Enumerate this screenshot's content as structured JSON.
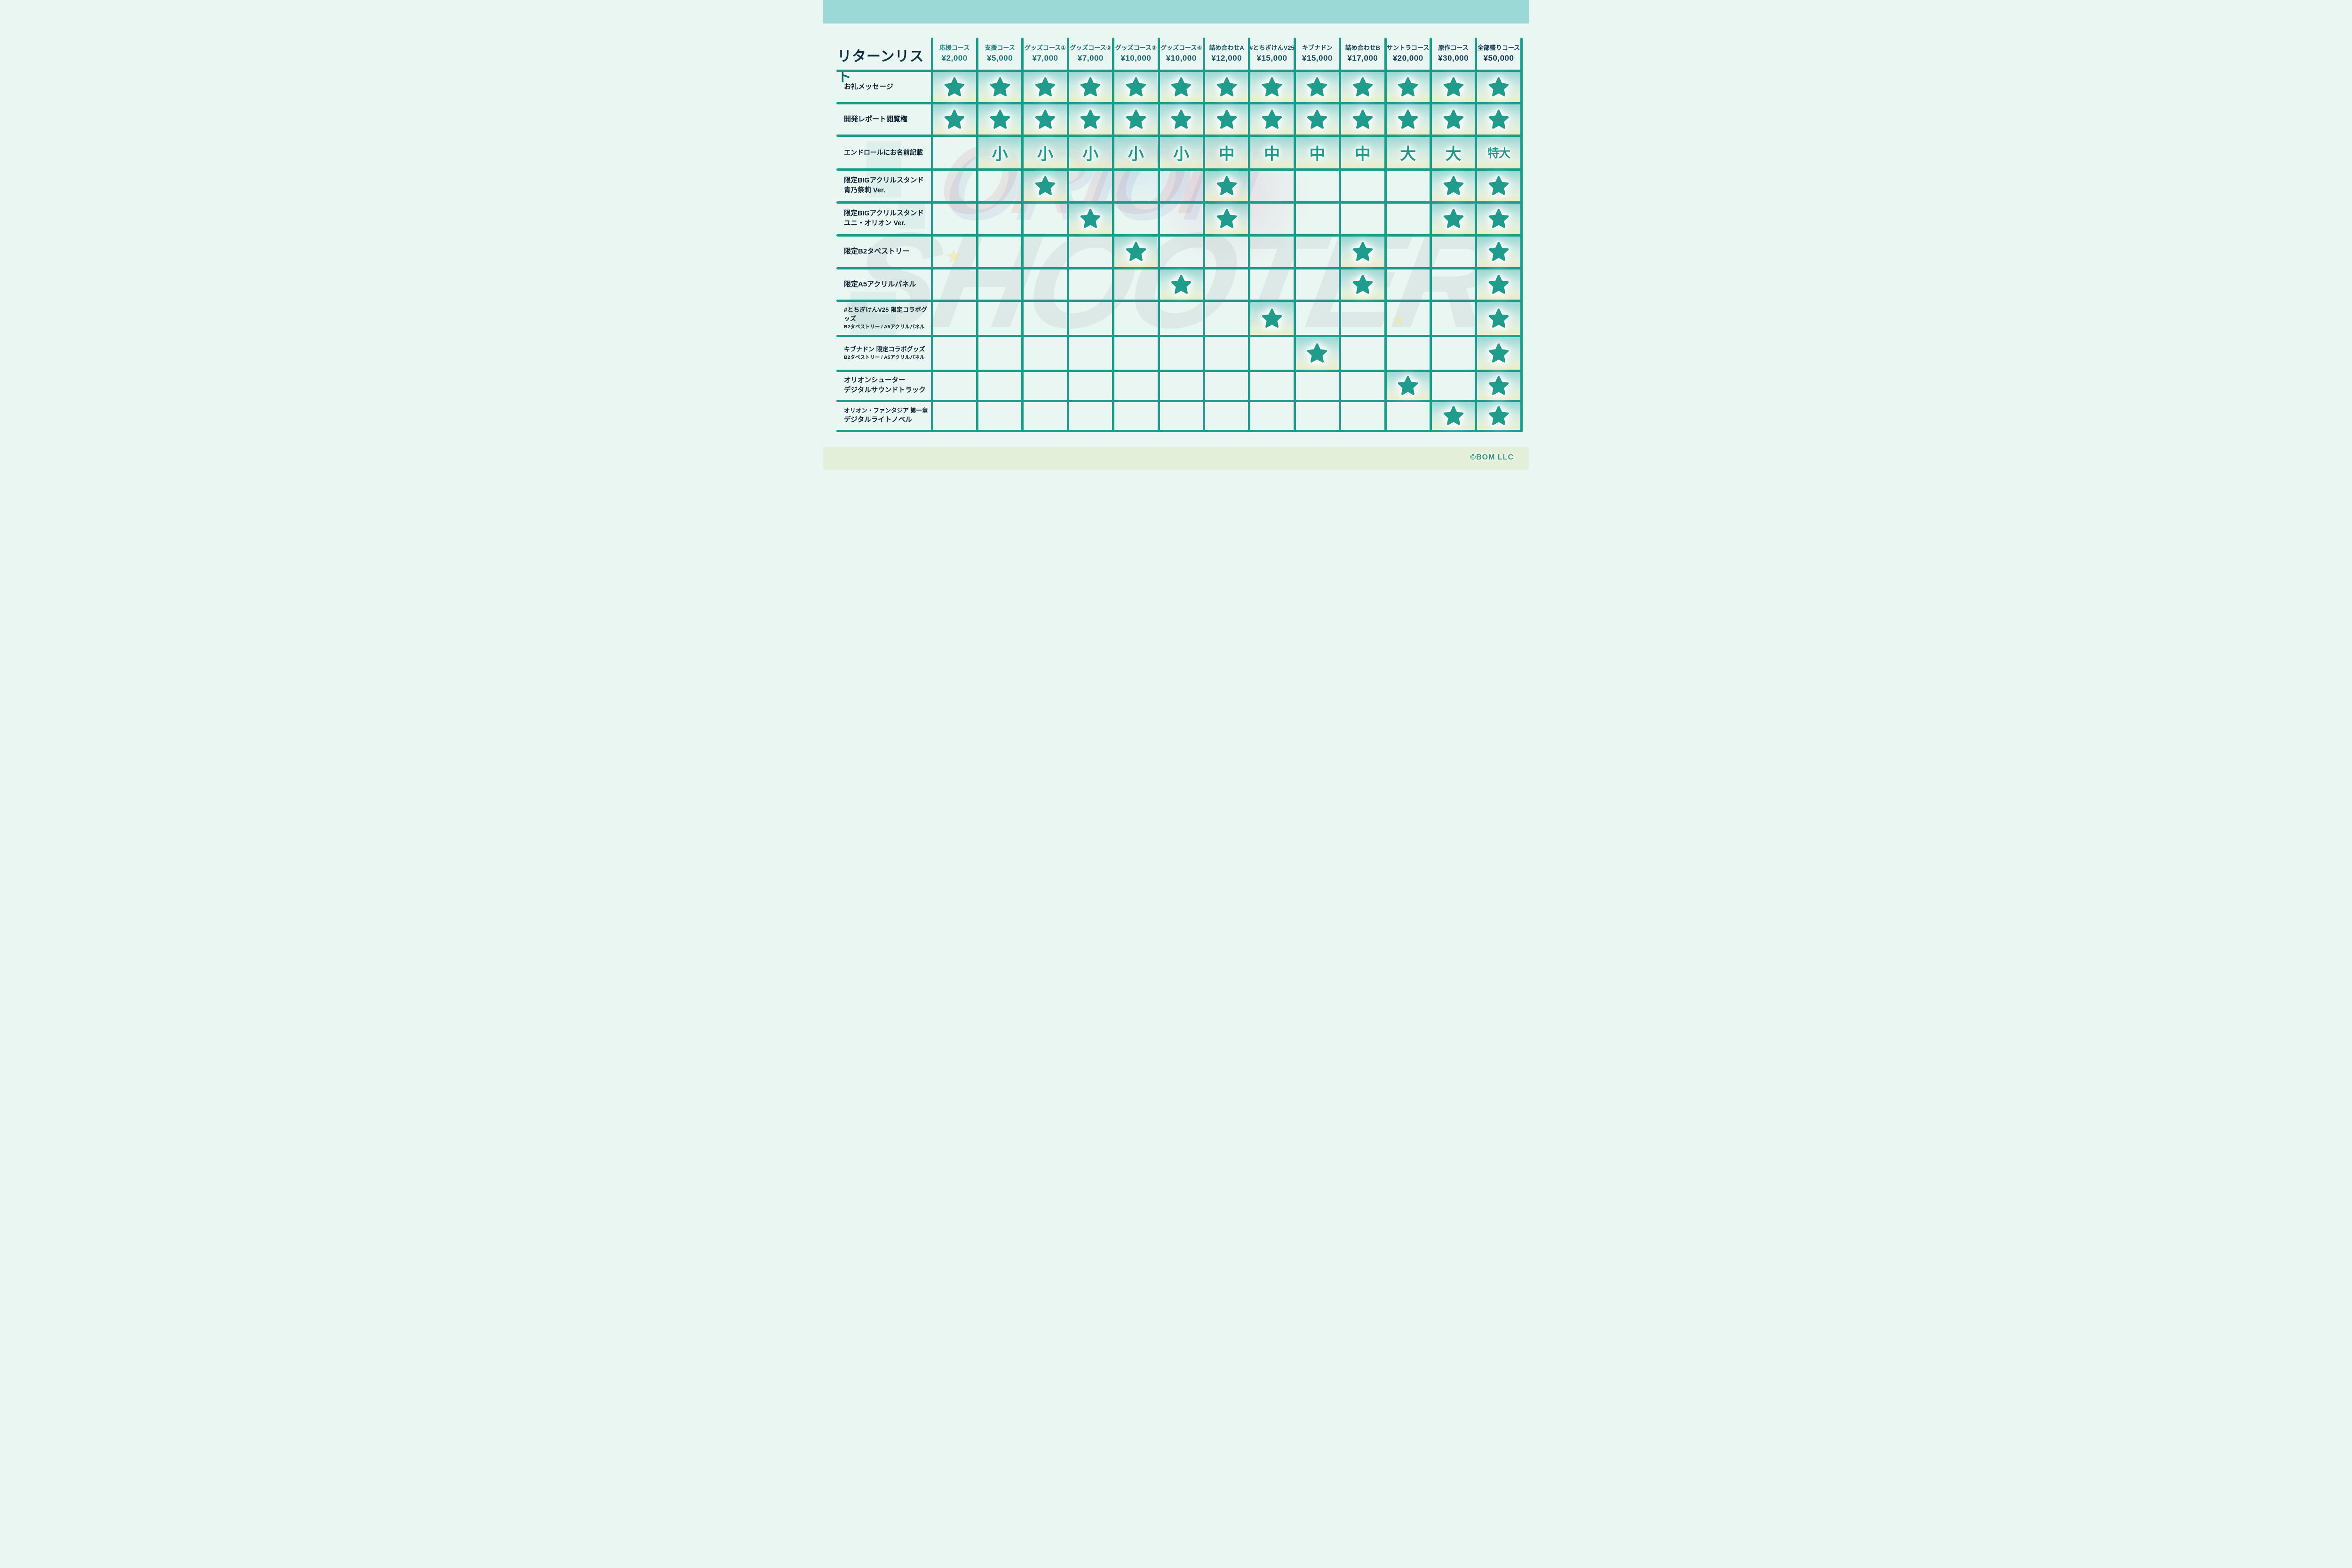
{
  "title": "リターンリスト",
  "copyright": "©BOM LLC",
  "watermark": {
    "line1": "ORION",
    "line2": "SHOOTER"
  },
  "colors": {
    "grid_teal": "#1b9c8b",
    "star_teal": "#1f9c8c",
    "label_navy": "#0e2130",
    "header_text_left": "#1e7b7c",
    "header_text_right": "#15304d",
    "top_band": "#9bd9d7",
    "bottom_band": "#e3efd8",
    "page_bg": "#eaf6f2",
    "cell_tint_top": "#97d6d3",
    "cell_tint_bottom": "#ecebc6",
    "copyright_green": "#2a9678"
  },
  "columns": [
    {
      "name": "応援コース",
      "price": "¥2,000"
    },
    {
      "name": "支援コース",
      "price": "¥5,000"
    },
    {
      "name": "グッズコース①",
      "price": "¥7,000"
    },
    {
      "name": "グッズコース②",
      "price": "¥7,000"
    },
    {
      "name": "グッズコース③",
      "price": "¥10,000"
    },
    {
      "name": "グッズコース④",
      "price": "¥10,000"
    },
    {
      "name": "詰め合わせA",
      "price": "¥12,000"
    },
    {
      "name": "#とちぎけんV25",
      "price": "¥15,000"
    },
    {
      "name": "キブナドン",
      "price": "¥15,000"
    },
    {
      "name": "詰め合わせB",
      "price": "¥17,000"
    },
    {
      "name": "サントラコース",
      "price": "¥20,000"
    },
    {
      "name": "原作コース",
      "price": "¥30,000"
    },
    {
      "name": "全部盛りコース",
      "price": "¥50,000"
    }
  ],
  "rows": [
    {
      "label_lines": [
        {
          "text": "お礼メッセージ",
          "size": 15
        }
      ],
      "cells": [
        "star",
        "star",
        "star",
        "star",
        "star",
        "star",
        "star",
        "star",
        "star",
        "star",
        "star",
        "star",
        "star"
      ]
    },
    {
      "label_lines": [
        {
          "text": "開発レポート閲覧権",
          "size": 15
        }
      ],
      "cells": [
        "star",
        "star",
        "star",
        "star",
        "star",
        "star",
        "star",
        "star",
        "star",
        "star",
        "star",
        "star",
        "star"
      ]
    },
    {
      "label_lines": [
        {
          "text": "エンドロールにお名前記載",
          "size": 14
        }
      ],
      "cells": [
        "",
        "小",
        "小",
        "小",
        "小",
        "小",
        "中",
        "中",
        "中",
        "中",
        "大",
        "大",
        "特大"
      ]
    },
    {
      "label_lines": [
        {
          "text": "限定BIGアクリルスタンド",
          "size": 14.5
        },
        {
          "text": "青乃祭莉 Ver.",
          "size": 14.5
        }
      ],
      "cells": [
        "",
        "",
        "star",
        "",
        "",
        "",
        "star",
        "",
        "",
        "",
        "",
        "star",
        "star"
      ]
    },
    {
      "label_lines": [
        {
          "text": "限定BIGアクリルスタンド",
          "size": 14.5
        },
        {
          "text": "ユニ・オリオン Ver.",
          "size": 14.5
        }
      ],
      "cells": [
        "",
        "",
        "",
        "star",
        "",
        "",
        "star",
        "",
        "",
        "",
        "",
        "star",
        "star"
      ]
    },
    {
      "label_lines": [
        {
          "text": "限定B2タペストリー",
          "size": 15
        }
      ],
      "cells": [
        "",
        "",
        "",
        "",
        "star",
        "",
        "",
        "",
        "",
        "star",
        "",
        "",
        "star"
      ]
    },
    {
      "label_lines": [
        {
          "text": "限定A5アクリルパネル",
          "size": 15
        }
      ],
      "cells": [
        "",
        "",
        "",
        "",
        "",
        "star",
        "",
        "",
        "",
        "star",
        "",
        "",
        "star"
      ]
    },
    {
      "label_lines": [
        {
          "text": "#とちぎけんV25 限定コラボグッズ",
          "size": 13
        },
        {
          "text": "B2タペストリー / A5アクリルパネル",
          "size": 10.5
        }
      ],
      "cells": [
        "",
        "",
        "",
        "",
        "",
        "",
        "",
        "star",
        "",
        "",
        "",
        "",
        "star"
      ]
    },
    {
      "label_lines": [
        {
          "text": "キブナドン 限定コラボグッズ",
          "size": 13
        },
        {
          "text": "B2タペストリー / A5アクリルパネル",
          "size": 10.5
        }
      ],
      "cells": [
        "",
        "",
        "",
        "",
        "",
        "",
        "",
        "",
        "star",
        "",
        "",
        "",
        "star"
      ]
    },
    {
      "label_lines": [
        {
          "text": "オリオンシューター",
          "size": 14.5
        },
        {
          "text": "デジタルサウンドトラック",
          "size": 14.5
        }
      ],
      "cells": [
        "",
        "",
        "",
        "",
        "",
        "",
        "",
        "",
        "",
        "",
        "star",
        "",
        "star"
      ]
    },
    {
      "label_lines": [
        {
          "text": "オリオン・ファンタジア 第一章",
          "size": 12.5
        },
        {
          "text": "デジタルライトノベル",
          "size": 14.5
        }
      ],
      "cells": [
        "",
        "",
        "",
        "",
        "",
        "",
        "",
        "",
        "",
        "",
        "",
        "star",
        "star"
      ]
    }
  ]
}
